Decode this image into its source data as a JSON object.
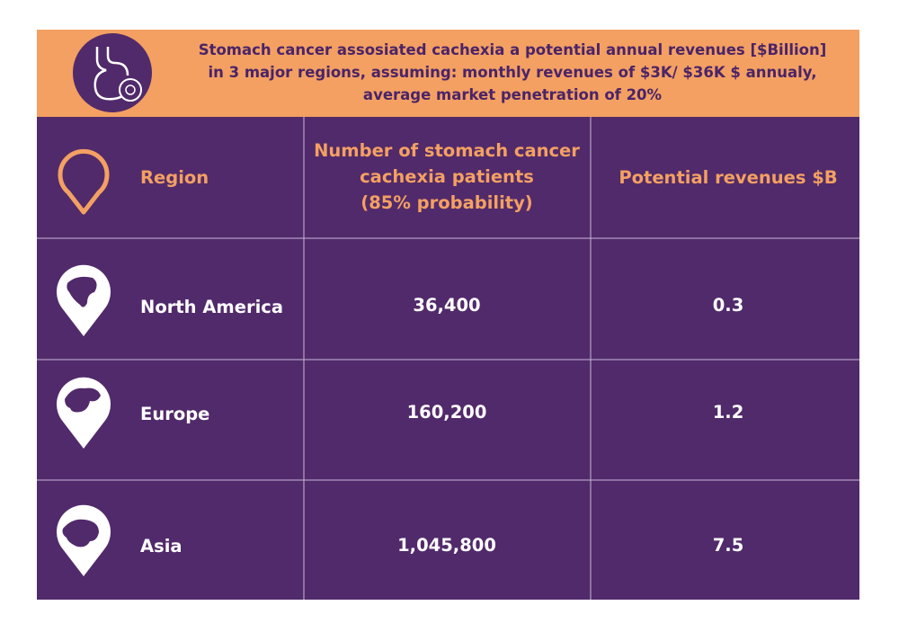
{
  "header": {
    "title_lines": [
      "Stomach cancer assosiated cachexia a potential annual revenues [$Billion]",
      "in 3 major regions, assuming: monthly revenues of $3K/ $36K $ annualy,",
      "average market  penetration of 20%"
    ]
  },
  "table": {
    "columns": [
      [
        "Region"
      ],
      [
        "Number of stomach cancer",
        "cachexia patients",
        "(85% probability)"
      ],
      [
        "Potential revenues $B"
      ]
    ],
    "rows": [
      [
        "North America",
        "36,400",
        "0.3"
      ],
      [
        "Europe",
        "160,200",
        "1.2"
      ],
      [
        "Asia",
        "1,045,800",
        "7.5"
      ]
    ]
  }
}
